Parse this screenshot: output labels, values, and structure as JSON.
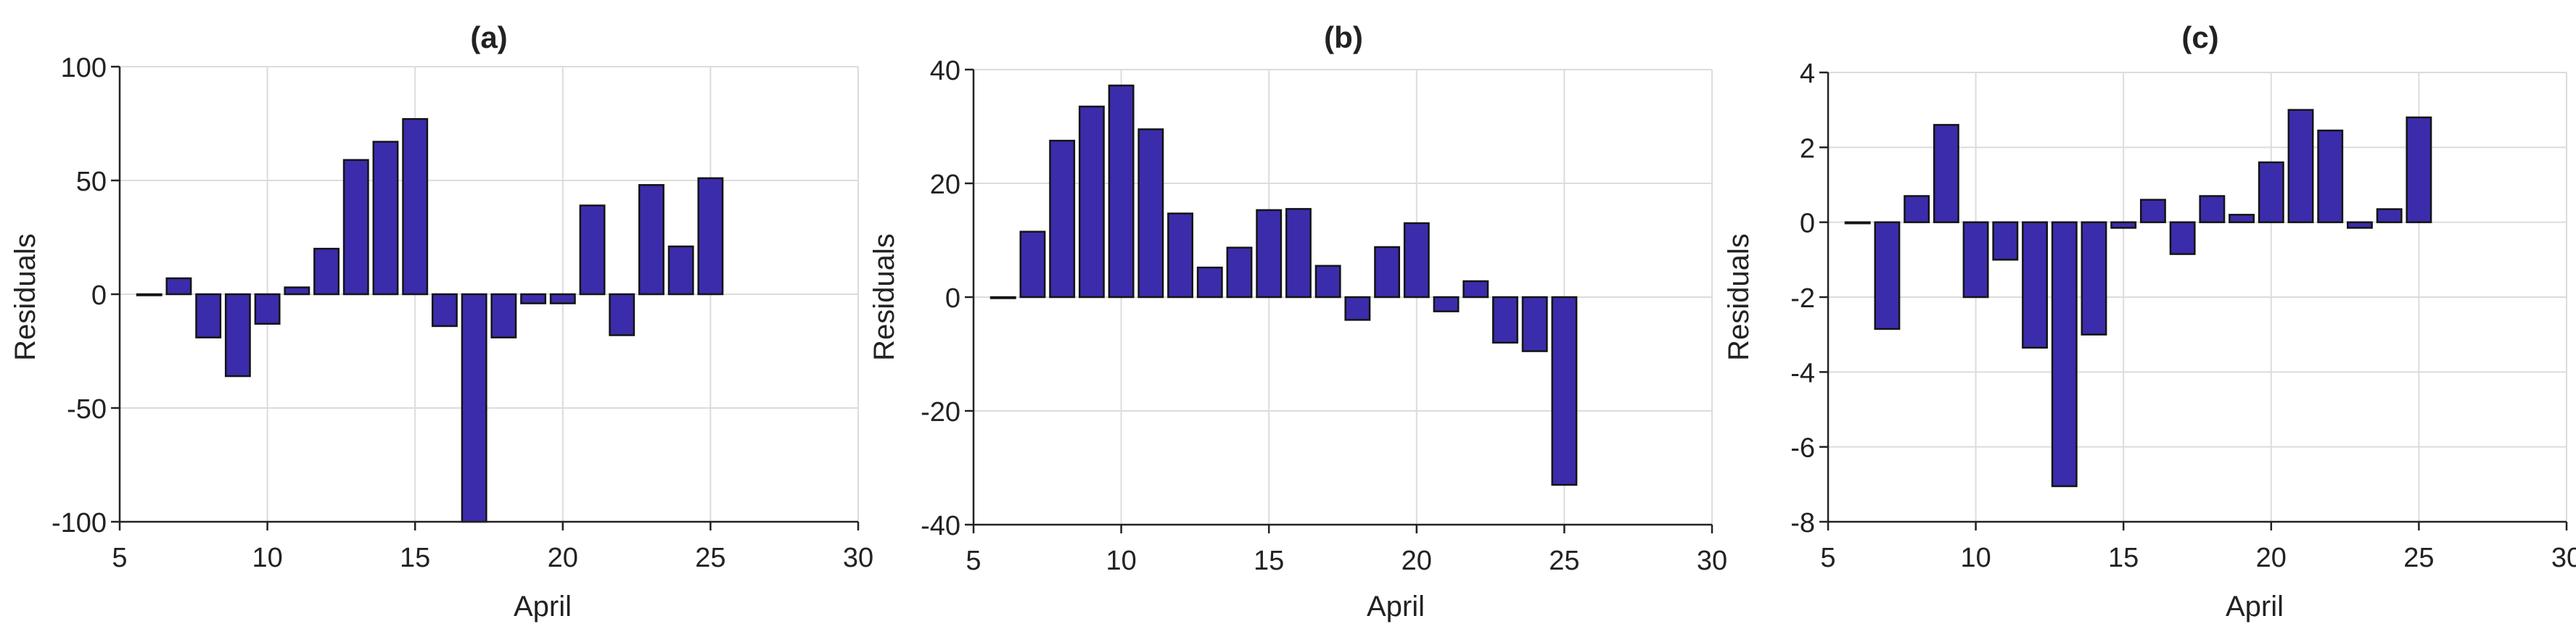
{
  "colors": {
    "bar_fill": "#3b2cab",
    "bar_stroke": "#141414",
    "grid": "#dcdcdc",
    "axis": "#222222"
  },
  "chart_data": [
    {
      "type": "bar",
      "title": "(a)",
      "xlabel": "April",
      "ylabel": "Residuals",
      "xlim": [
        5,
        30
      ],
      "ylim": [
        -100,
        100
      ],
      "xticks": [
        5,
        10,
        15,
        20,
        25,
        30
      ],
      "yticks": [
        -100,
        -50,
        0,
        50,
        100
      ],
      "grid": true,
      "x": [
        6,
        7,
        8,
        9,
        10,
        11,
        12,
        13,
        14,
        15,
        16,
        17,
        18,
        19,
        20,
        21,
        22,
        23,
        24,
        25
      ],
      "values": [
        0,
        7,
        -19,
        -36,
        -13,
        3,
        20,
        59,
        67,
        77,
        -14,
        -100,
        -19,
        -4,
        -4,
        39,
        -18,
        48,
        21,
        51
      ]
    },
    {
      "type": "bar",
      "title": "(b)",
      "xlabel": "April",
      "ylabel": "Residuals",
      "xlim": [
        5,
        30
      ],
      "ylim": [
        -40,
        40
      ],
      "xticks": [
        5,
        10,
        15,
        20,
        25,
        30
      ],
      "yticks": [
        -40,
        -20,
        0,
        20,
        40
      ],
      "grid": true,
      "x": [
        6,
        7,
        8,
        9,
        10,
        11,
        12,
        13,
        14,
        15,
        16,
        17,
        18,
        19,
        20,
        21,
        22,
        23,
        24,
        25
      ],
      "values": [
        0,
        11.5,
        27.5,
        33.5,
        37.2,
        29.5,
        14.7,
        5.2,
        8.7,
        15.3,
        15.5,
        5.5,
        -4,
        8.8,
        13,
        -2.5,
        2.8,
        -8,
        -9.5,
        -33
      ]
    },
    {
      "type": "bar",
      "title": "(c)",
      "xlabel": "April",
      "ylabel": "Residuals",
      "xlim": [
        5,
        30
      ],
      "ylim": [
        -8,
        4
      ],
      "xticks": [
        5,
        10,
        15,
        20,
        25,
        30
      ],
      "yticks": [
        -8,
        -6,
        -4,
        -2,
        0,
        2,
        4
      ],
      "grid": true,
      "x": [
        6,
        7,
        8,
        9,
        10,
        11,
        12,
        13,
        14,
        15,
        16,
        17,
        18,
        19,
        20,
        21,
        22,
        23,
        24,
        25
      ],
      "values": [
        0,
        -2.85,
        0.7,
        2.6,
        -2,
        -1,
        -3.35,
        -7.05,
        -3,
        -0.15,
        0.6,
        -0.85,
        0.7,
        0.2,
        1.6,
        3,
        2.45,
        -0.15,
        0.35,
        2.8
      ]
    }
  ]
}
